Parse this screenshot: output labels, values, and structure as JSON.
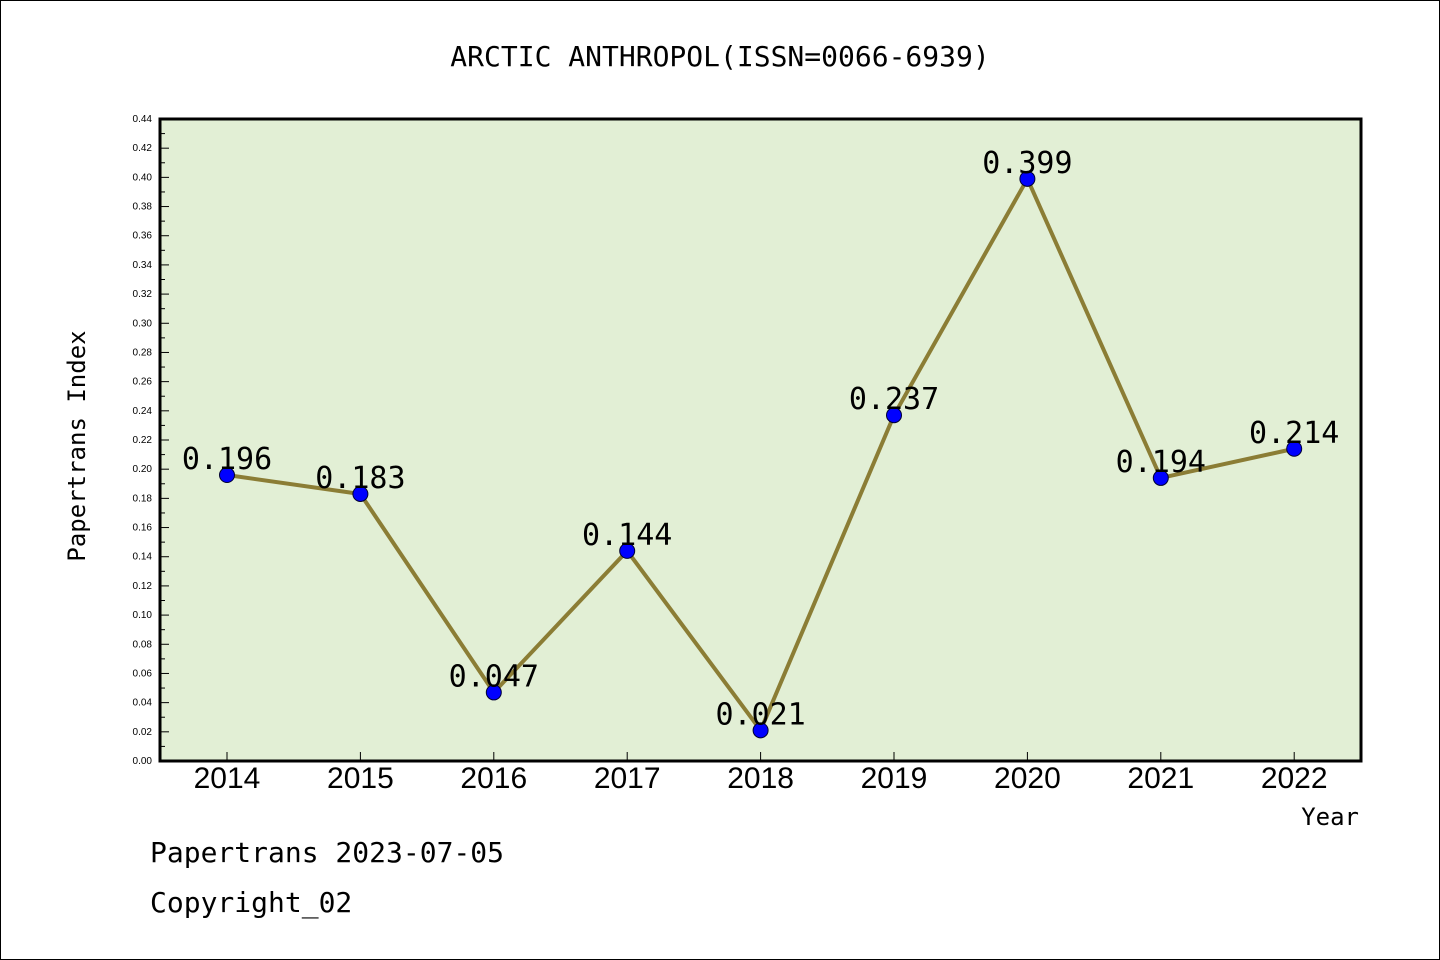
{
  "chart_data": {
    "type": "line",
    "title": "ARCTIC ANTHROPOL(ISSN=0066-6939)",
    "xlabel": "Year",
    "ylabel": "Papertrans Index",
    "categories": [
      "2014",
      "2015",
      "2016",
      "2017",
      "2018",
      "2019",
      "2020",
      "2021",
      "2022"
    ],
    "values": [
      0.196,
      0.183,
      0.047,
      0.144,
      0.021,
      0.237,
      0.399,
      0.194,
      0.214
    ],
    "data_labels": [
      "0.196",
      "0.183",
      "0.047",
      "0.144",
      "0.021",
      "0.237",
      "0.399",
      "0.194",
      "0.214"
    ],
    "ylim": [
      0,
      0.44
    ],
    "yticks": [
      "0.00",
      "0.02",
      "0.04",
      "0.06",
      "0.08",
      "0.10",
      "0.12",
      "0.14",
      "0.16",
      "0.18",
      "0.20",
      "0.22",
      "0.24",
      "0.26",
      "0.28",
      "0.30",
      "0.32",
      "0.34",
      "0.36",
      "0.38",
      "0.40",
      "0.42",
      "0.44"
    ],
    "grid": false,
    "colors": {
      "plot_background": "#e2efd5",
      "line": "#8b7d35",
      "marker": "#0000ff"
    }
  },
  "footer": {
    "source": "Papertrans 2023-07-05",
    "copyright": "Copyright_02"
  }
}
